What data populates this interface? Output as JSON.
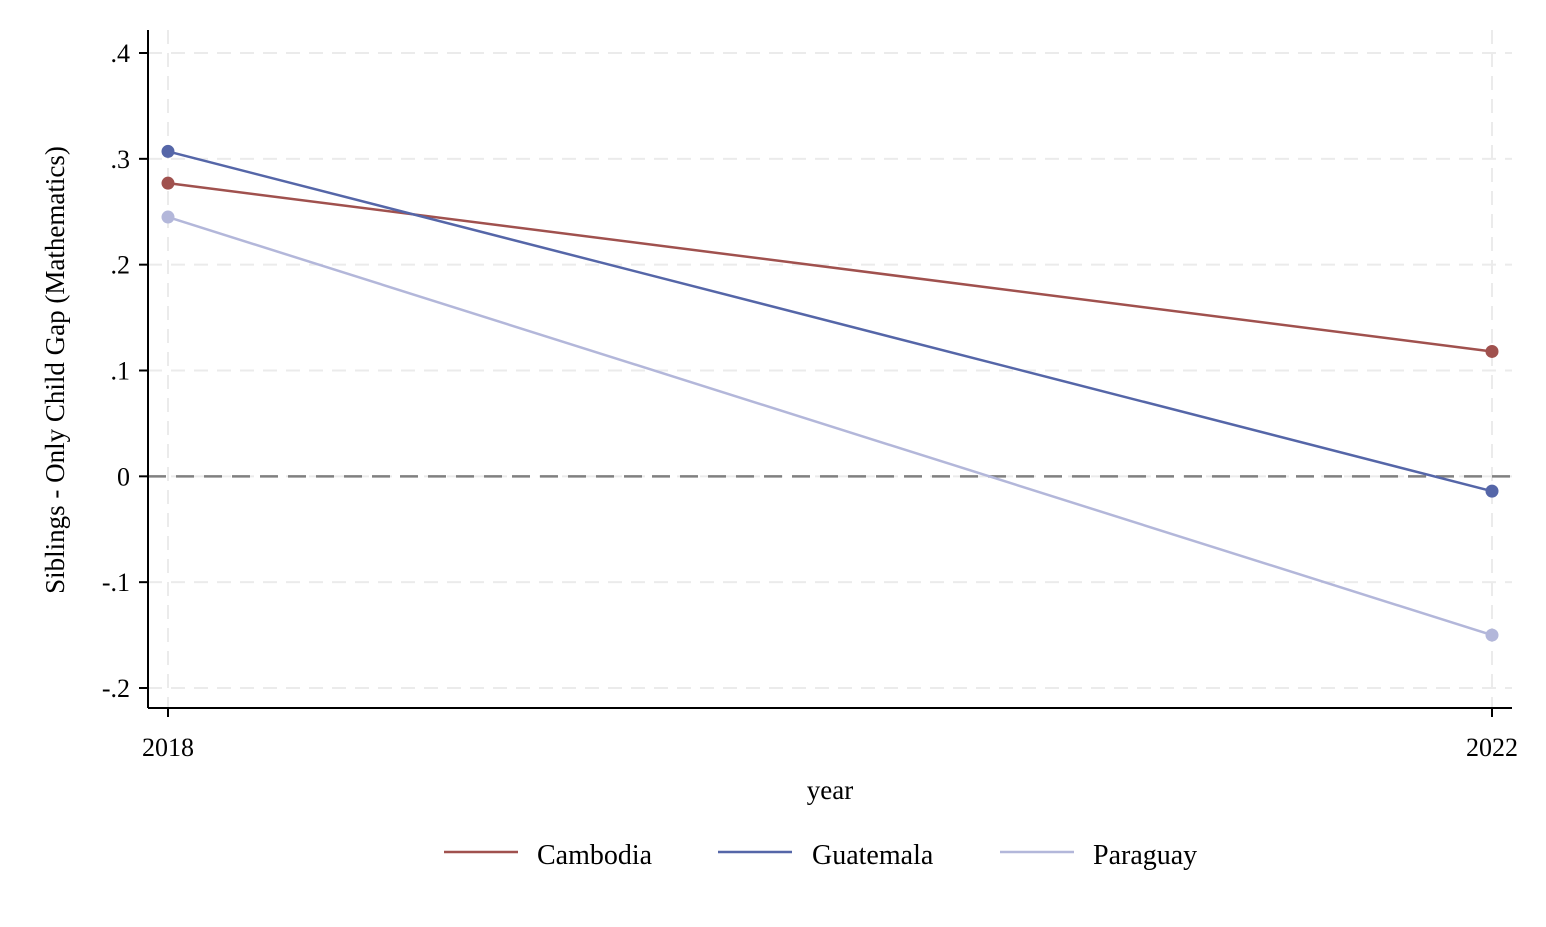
{
  "chart_data": {
    "type": "line",
    "title": "",
    "xlabel": "year",
    "ylabel": "Siblings - Only Child Gap (Mathematics)",
    "x": [
      2018,
      2022
    ],
    "x_tick_labels": [
      "2018",
      "2022"
    ],
    "ylim": [
      -0.2,
      0.4
    ],
    "y_ticks": [
      -0.2,
      -0.1,
      0,
      0.1,
      0.2,
      0.3,
      0.4
    ],
    "y_tick_labels": [
      "-.2",
      "-.1",
      "0",
      ".1",
      ".2",
      ".3",
      ".4"
    ],
    "grid": true,
    "reference_line": {
      "y": 0,
      "style": "dashed",
      "color": "#808080"
    },
    "legend_position": "bottom",
    "series": [
      {
        "name": "Cambodia",
        "values": [
          0.277,
          0.118
        ],
        "color": "#A0514E"
      },
      {
        "name": "Guatemala",
        "values": [
          0.307,
          -0.014
        ],
        "color": "#5566A8"
      },
      {
        "name": "Paraguay",
        "values": [
          0.245,
          -0.15
        ],
        "color": "#B3B7DA"
      }
    ]
  }
}
